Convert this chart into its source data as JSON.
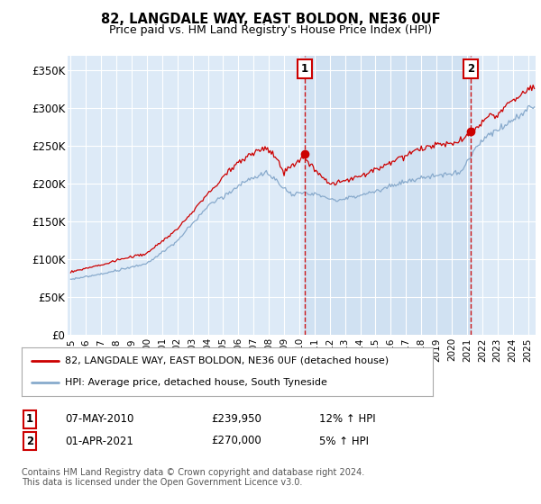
{
  "title": "82, LANGDALE WAY, EAST BOLDON, NE36 0UF",
  "subtitle": "Price paid vs. HM Land Registry's House Price Index (HPI)",
  "ylabel_ticks": [
    "£0",
    "£50K",
    "£100K",
    "£150K",
    "£200K",
    "£250K",
    "£300K",
    "£350K"
  ],
  "ytick_values": [
    0,
    50000,
    100000,
    150000,
    200000,
    250000,
    300000,
    350000
  ],
  "ylim": [
    0,
    370000
  ],
  "xlim_start": 1994.8,
  "xlim_end": 2025.5,
  "background_color": "#ddeaf7",
  "shade_color": "#c8dcf0",
  "grid_color": "#ffffff",
  "red_line_color": "#cc0000",
  "blue_line_color": "#88aacc",
  "marker1_date": 2010.37,
  "marker2_date": 2021.25,
  "marker1_value": 239950,
  "marker2_value": 270000,
  "legend_label1": "82, LANGDALE WAY, EAST BOLDON, NE36 0UF (detached house)",
  "legend_label2": "HPI: Average price, detached house, South Tyneside",
  "annotation1_label": "1",
  "annotation2_label": "2",
  "table_row1": [
    "1",
    "07-MAY-2010",
    "£239,950",
    "12% ↑ HPI"
  ],
  "table_row2": [
    "2",
    "01-APR-2021",
    "£270,000",
    "5% ↑ HPI"
  ],
  "footer": "Contains HM Land Registry data © Crown copyright and database right 2024.\nThis data is licensed under the Open Government Licence v3.0.",
  "xtick_years": [
    1995,
    1996,
    1997,
    1998,
    1999,
    2000,
    2001,
    2002,
    2003,
    2004,
    2005,
    2006,
    2007,
    2008,
    2009,
    2010,
    2011,
    2012,
    2013,
    2014,
    2015,
    2016,
    2017,
    2018,
    2019,
    2020,
    2021,
    2022,
    2023,
    2024,
    2025
  ]
}
